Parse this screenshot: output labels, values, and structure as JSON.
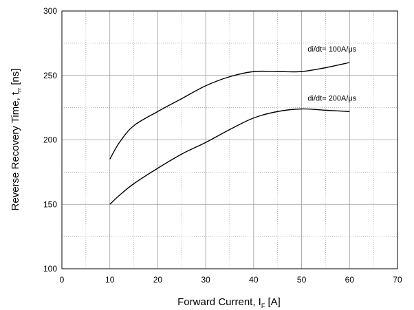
{
  "chart_data": {
    "type": "line",
    "xlabel": {
      "main": "Forward Current, I",
      "sub": "F",
      "unit": " [A]"
    },
    "ylabel": {
      "main": "Reverse Recovery Time, t",
      "sub": "rr",
      "unit": " [ns]"
    },
    "xlim": [
      0,
      70
    ],
    "ylim": [
      100,
      300
    ],
    "xticks": [
      0,
      10,
      20,
      30,
      40,
      50,
      60,
      70
    ],
    "yticks": [
      100,
      150,
      200,
      250,
      300
    ],
    "grid": true,
    "series": [
      {
        "name": "di/dt= 100A/μs",
        "x": [
          10,
          12,
          15,
          20,
          25,
          30,
          35,
          40,
          45,
          50,
          55,
          60
        ],
        "y": [
          185,
          198,
          211,
          222,
          232,
          242,
          249,
          253,
          253,
          253,
          256,
          260
        ]
      },
      {
        "name": "di/dt= 200A/μs",
        "x": [
          10,
          12,
          15,
          20,
          25,
          30,
          35,
          40,
          45,
          50,
          55,
          60
        ],
        "y": [
          150,
          157,
          166,
          178,
          189,
          198,
          208,
          217,
          222,
          224,
          223,
          222
        ]
      }
    ]
  }
}
